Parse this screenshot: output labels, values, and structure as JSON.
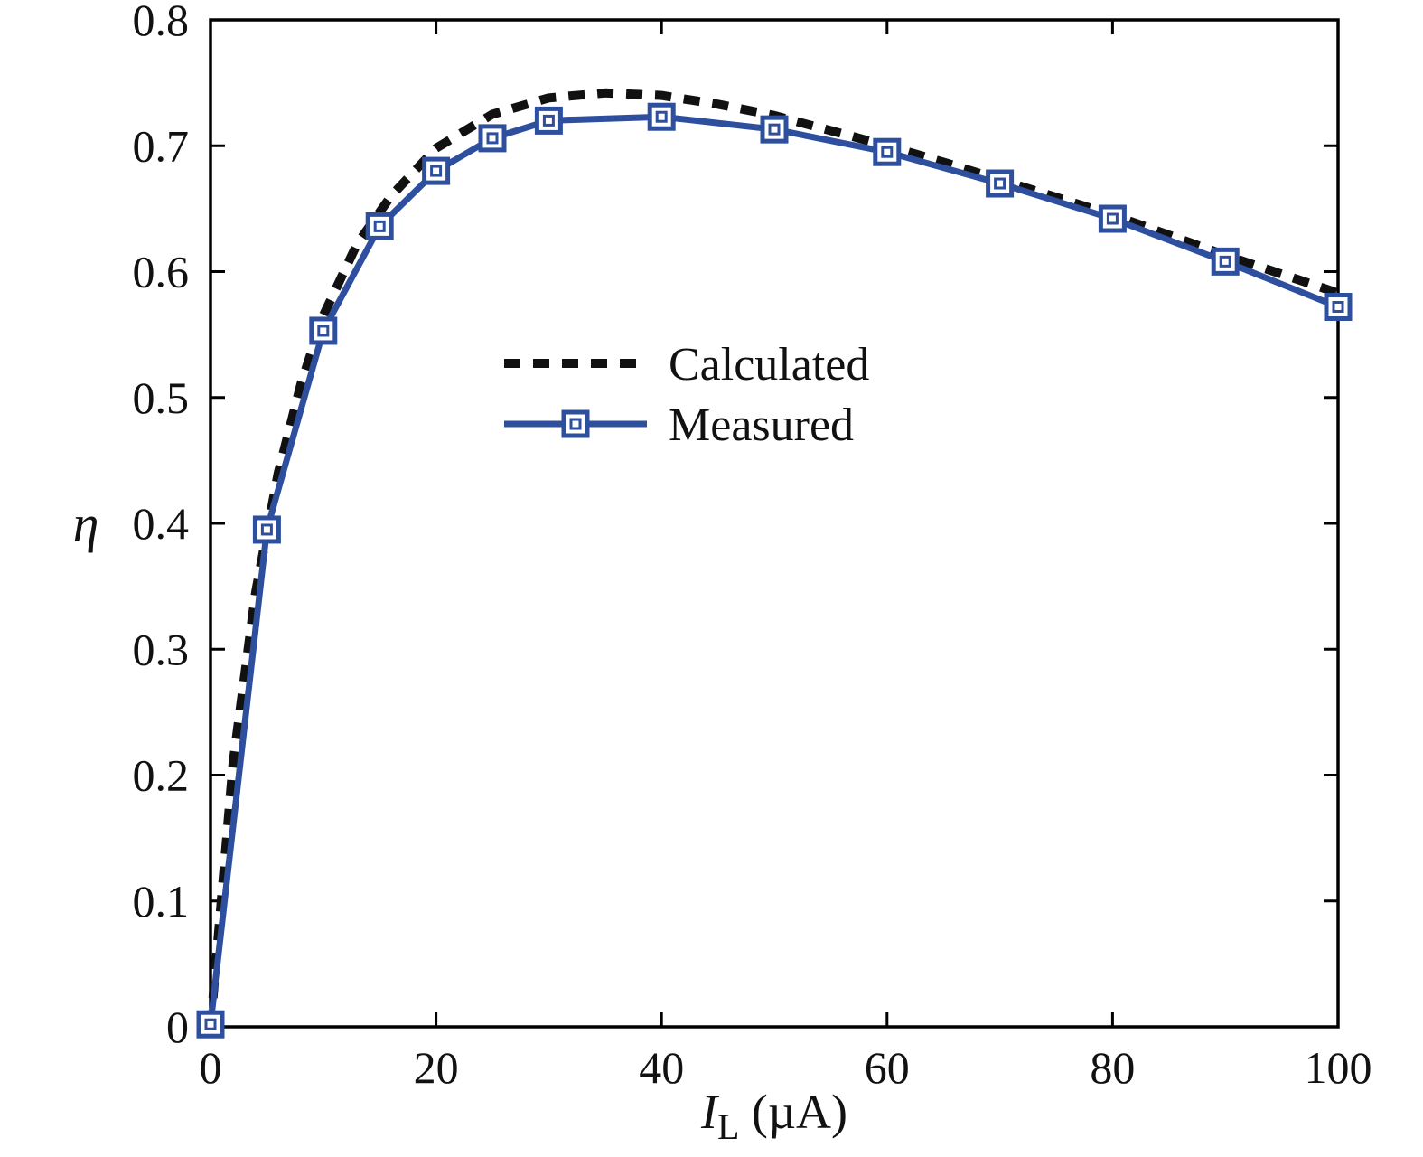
{
  "chart_data": {
    "type": "line",
    "title": "",
    "xlabel": "I_L (µA)",
    "xlabel_parts": {
      "symbol": "I",
      "subscript": "L",
      "unit": "(µA)"
    },
    "ylabel": "η",
    "xlim": [
      0,
      100
    ],
    "ylim": [
      0,
      0.8
    ],
    "xticks": [
      0,
      20,
      40,
      60,
      80,
      100
    ],
    "yticks": [
      0,
      0.1,
      0.2,
      0.3,
      0.4,
      0.5,
      0.6,
      0.7,
      0.8
    ],
    "xtick_labels": [
      "0",
      "20",
      "40",
      "60",
      "80",
      "100"
    ],
    "ytick_labels": [
      "0",
      "0.1",
      "0.2",
      "0.3",
      "0.4",
      "0.5",
      "0.6",
      "0.7",
      "0.8"
    ],
    "grid": false,
    "legend_position": "inside-upper-center",
    "axis_color": "#000000",
    "series": [
      {
        "name": "Calculated",
        "style": "dashed",
        "color": "#111111",
        "marker": "none",
        "x": [
          0,
          2,
          4,
          6,
          8,
          10,
          13,
          16,
          20,
          25,
          30,
          35,
          40,
          45,
          50,
          55,
          60,
          65,
          70,
          75,
          80,
          85,
          90,
          95,
          100
        ],
        "y": [
          0.0,
          0.21,
          0.345,
          0.44,
          0.51,
          0.565,
          0.622,
          0.66,
          0.698,
          0.725,
          0.738,
          0.742,
          0.74,
          0.733,
          0.724,
          0.712,
          0.7,
          0.687,
          0.673,
          0.659,
          0.645,
          0.629,
          0.613,
          0.598,
          0.583
        ]
      },
      {
        "name": "Measured",
        "style": "solid",
        "color": "#2d4f9e",
        "marker": "square",
        "x": [
          0,
          5,
          10,
          15,
          20,
          25,
          30,
          40,
          50,
          60,
          70,
          80,
          90,
          100
        ],
        "y": [
          0.002,
          0.395,
          0.553,
          0.636,
          0.68,
          0.706,
          0.72,
          0.723,
          0.713,
          0.695,
          0.67,
          0.642,
          0.608,
          0.572
        ]
      }
    ]
  }
}
